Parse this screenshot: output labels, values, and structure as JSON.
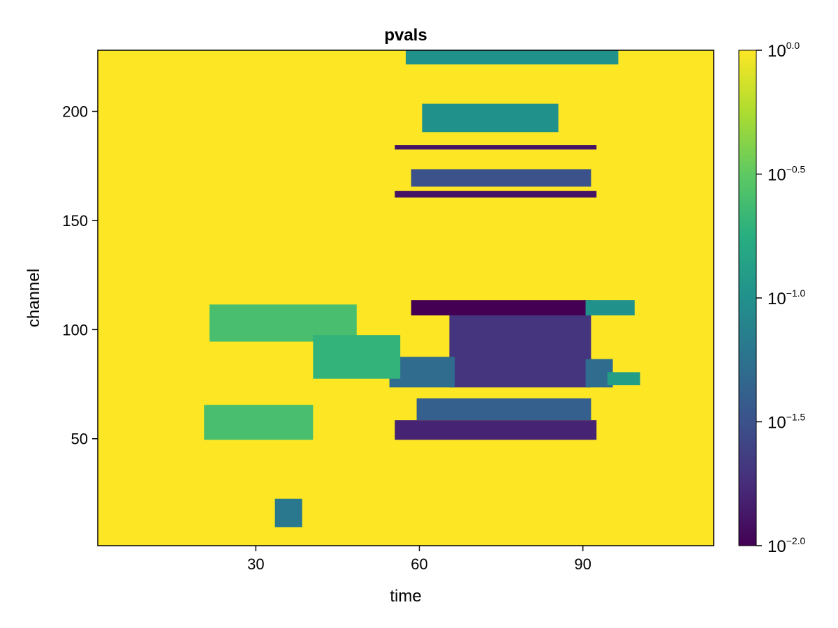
{
  "chart_data": {
    "type": "heatmap",
    "title": "pvals",
    "xlabel": "time",
    "ylabel": "channel",
    "xlim": [
      1,
      114
    ],
    "ylim": [
      1,
      228
    ],
    "x_ticks": [
      30,
      60,
      90
    ],
    "x_tick_labels": [
      "30",
      "60",
      "90"
    ],
    "y_ticks": [
      50,
      100,
      150,
      200
    ],
    "y_tick_labels": [
      "50",
      "100",
      "150",
      "200"
    ],
    "colormap": "viridis",
    "background_value": 1.0,
    "colorbar": {
      "scale": "log10",
      "range": [
        0.01,
        1.0
      ],
      "ticks": [
        -2.0,
        -1.5,
        -1.0,
        -0.5,
        0.0
      ],
      "base_label": "10",
      "tick_exponents": [
        "−2.0",
        "−1.5",
        "−1.0",
        "−0.5",
        "0.0"
      ]
    },
    "regions": [
      {
        "t": [
          59,
          91
        ],
        "ch": [
          107,
          113
        ],
        "log10_p": -2.0
      },
      {
        "t": [
          91,
          99
        ],
        "ch": [
          107,
          113
        ],
        "log10_p": -1.0
      },
      {
        "t": [
          66,
          91
        ],
        "ch": [
          74,
          106
        ],
        "log10_p": -1.7
      },
      {
        "t": [
          55,
          66
        ],
        "ch": [
          74,
          87
        ],
        "log10_p": -1.3
      },
      {
        "t": [
          91,
          95
        ],
        "ch": [
          74,
          86
        ],
        "log10_p": -1.3
      },
      {
        "t": [
          95,
          100
        ],
        "ch": [
          75,
          80
        ],
        "log10_p": -0.9
      },
      {
        "t": [
          56,
          92
        ],
        "ch": [
          50,
          58
        ],
        "log10_p": -1.8
      },
      {
        "t": [
          60,
          91
        ],
        "ch": [
          59,
          68
        ],
        "log10_p": -1.4
      },
      {
        "t": [
          59,
          91
        ],
        "ch": [
          166,
          173
        ],
        "log10_p": -1.5
      },
      {
        "t": [
          56,
          92
        ],
        "ch": [
          161,
          163
        ],
        "log10_p": -1.9
      },
      {
        "t": [
          61,
          85
        ],
        "ch": [
          191,
          203
        ],
        "log10_p": -1.0
      },
      {
        "t": [
          56,
          92
        ],
        "ch": [
          183,
          184
        ],
        "log10_p": -1.9
      },
      {
        "t": [
          58,
          96
        ],
        "ch": [
          222,
          228
        ],
        "log10_p": -1.0
      },
      {
        "t": [
          22,
          48
        ],
        "ch": [
          95,
          111
        ],
        "log10_p": -0.6
      },
      {
        "t": [
          41,
          56
        ],
        "ch": [
          78,
          97
        ],
        "log10_p": -0.7
      },
      {
        "t": [
          21,
          40
        ],
        "ch": [
          50,
          65
        ],
        "log10_p": -0.6
      },
      {
        "t": [
          34,
          38
        ],
        "ch": [
          10,
          22
        ],
        "log10_p": -1.2
      }
    ]
  }
}
